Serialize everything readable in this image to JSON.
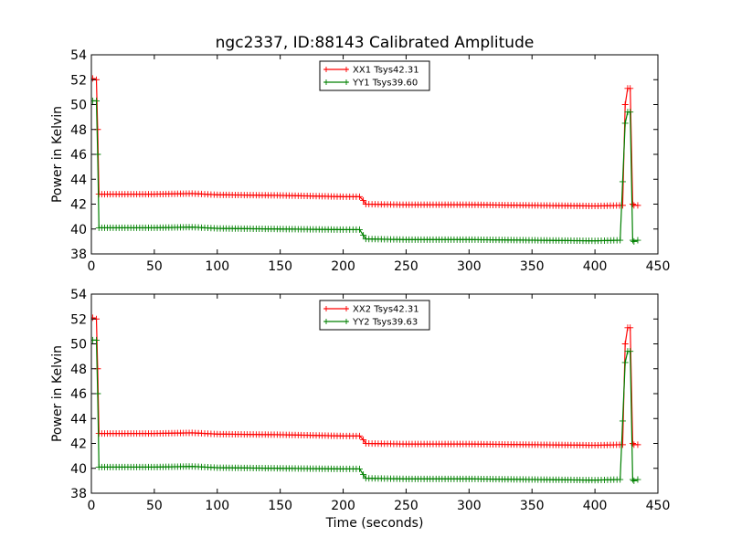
{
  "title": "ngc2337, ID:88143 Calibrated Amplitude",
  "colors": {
    "red": "#ff0000",
    "green": "#008000"
  },
  "chart_data": [
    {
      "type": "line",
      "xlabel": "",
      "ylabel": "Power in Kelvin",
      "xlim": [
        0,
        450
      ],
      "ylim": [
        38,
        54
      ],
      "xticks": [
        0,
        50,
        100,
        150,
        200,
        250,
        300,
        350,
        400,
        450
      ],
      "yticks": [
        38,
        40,
        42,
        44,
        46,
        48,
        50,
        52,
        54
      ],
      "grid": false,
      "legend_position": "top-center",
      "marker": "+",
      "series": [
        {
          "name": "XX1 Tsys42.31",
          "color": "#ff0000",
          "points": [
            [
              1,
              52.1
            ],
            [
              4,
              52.0
            ],
            [
              5,
              48
            ],
            [
              6,
              42.8
            ],
            [
              15,
              42.8
            ],
            [
              50,
              42.8
            ],
            [
              80,
              42.85
            ],
            [
              100,
              42.75
            ],
            [
              150,
              42.7
            ],
            [
              200,
              42.6
            ],
            [
              213,
              42.6
            ],
            [
              216,
              42.3
            ],
            [
              218,
              42.0
            ],
            [
              250,
              41.95
            ],
            [
              300,
              41.95
            ],
            [
              350,
              41.9
            ],
            [
              400,
              41.85
            ],
            [
              422,
              41.9
            ],
            [
              424,
              50.0
            ],
            [
              426,
              51.3
            ],
            [
              428,
              51.3
            ],
            [
              430,
              42
            ],
            [
              431,
              41.9
            ],
            [
              434,
              41.9
            ]
          ]
        },
        {
          "name": "YY1 Tsys39.60",
          "color": "#008000",
          "points": [
            [
              1,
              50.3
            ],
            [
              4,
              50.3
            ],
            [
              5,
              46
            ],
            [
              6,
              40.1
            ],
            [
              15,
              40.1
            ],
            [
              50,
              40.1
            ],
            [
              80,
              40.15
            ],
            [
              100,
              40.05
            ],
            [
              150,
              40.0
            ],
            [
              200,
              39.95
            ],
            [
              213,
              39.95
            ],
            [
              216,
              39.5
            ],
            [
              218,
              39.2
            ],
            [
              250,
              39.15
            ],
            [
              300,
              39.15
            ],
            [
              350,
              39.1
            ],
            [
              400,
              39.05
            ],
            [
              420,
              39.1
            ],
            [
              424,
              48.5
            ],
            [
              426,
              49.4
            ],
            [
              428,
              49.4
            ],
            [
              430,
              39.1
            ],
            [
              431,
              39.0
            ],
            [
              434,
              39.1
            ]
          ]
        }
      ]
    },
    {
      "type": "line",
      "xlabel": "Time (seconds)",
      "ylabel": "Power in Kelvin",
      "xlim": [
        0,
        450
      ],
      "ylim": [
        38,
        54
      ],
      "xticks": [
        0,
        50,
        100,
        150,
        200,
        250,
        300,
        350,
        400,
        450
      ],
      "yticks": [
        38,
        40,
        42,
        44,
        46,
        48,
        50,
        52,
        54
      ],
      "grid": false,
      "legend_position": "top-center",
      "marker": "+",
      "series": [
        {
          "name": "XX2 Tsys42.31",
          "color": "#ff0000",
          "points": [
            [
              1,
              52.1
            ],
            [
              4,
              52.0
            ],
            [
              5,
              48
            ],
            [
              6,
              42.8
            ],
            [
              15,
              42.8
            ],
            [
              50,
              42.8
            ],
            [
              80,
              42.85
            ],
            [
              100,
              42.75
            ],
            [
              150,
              42.7
            ],
            [
              200,
              42.6
            ],
            [
              213,
              42.6
            ],
            [
              216,
              42.3
            ],
            [
              218,
              42.0
            ],
            [
              250,
              41.95
            ],
            [
              300,
              41.95
            ],
            [
              350,
              41.9
            ],
            [
              400,
              41.85
            ],
            [
              422,
              41.9
            ],
            [
              424,
              50.0
            ],
            [
              426,
              51.3
            ],
            [
              428,
              51.3
            ],
            [
              430,
              42
            ],
            [
              431,
              41.9
            ],
            [
              434,
              41.9
            ]
          ]
        },
        {
          "name": "YY2 Tsys39.63",
          "color": "#008000",
          "points": [
            [
              1,
              50.3
            ],
            [
              4,
              50.3
            ],
            [
              5,
              46
            ],
            [
              6,
              40.1
            ],
            [
              15,
              40.1
            ],
            [
              50,
              40.1
            ],
            [
              80,
              40.15
            ],
            [
              100,
              40.05
            ],
            [
              150,
              40.0
            ],
            [
              200,
              39.95
            ],
            [
              213,
              39.95
            ],
            [
              216,
              39.5
            ],
            [
              218,
              39.2
            ],
            [
              250,
              39.15
            ],
            [
              300,
              39.15
            ],
            [
              350,
              39.1
            ],
            [
              400,
              39.05
            ],
            [
              420,
              39.1
            ],
            [
              424,
              48.5
            ],
            [
              426,
              49.4
            ],
            [
              428,
              49.4
            ],
            [
              430,
              39.1
            ],
            [
              431,
              39.0
            ],
            [
              434,
              39.1
            ]
          ]
        }
      ]
    }
  ]
}
